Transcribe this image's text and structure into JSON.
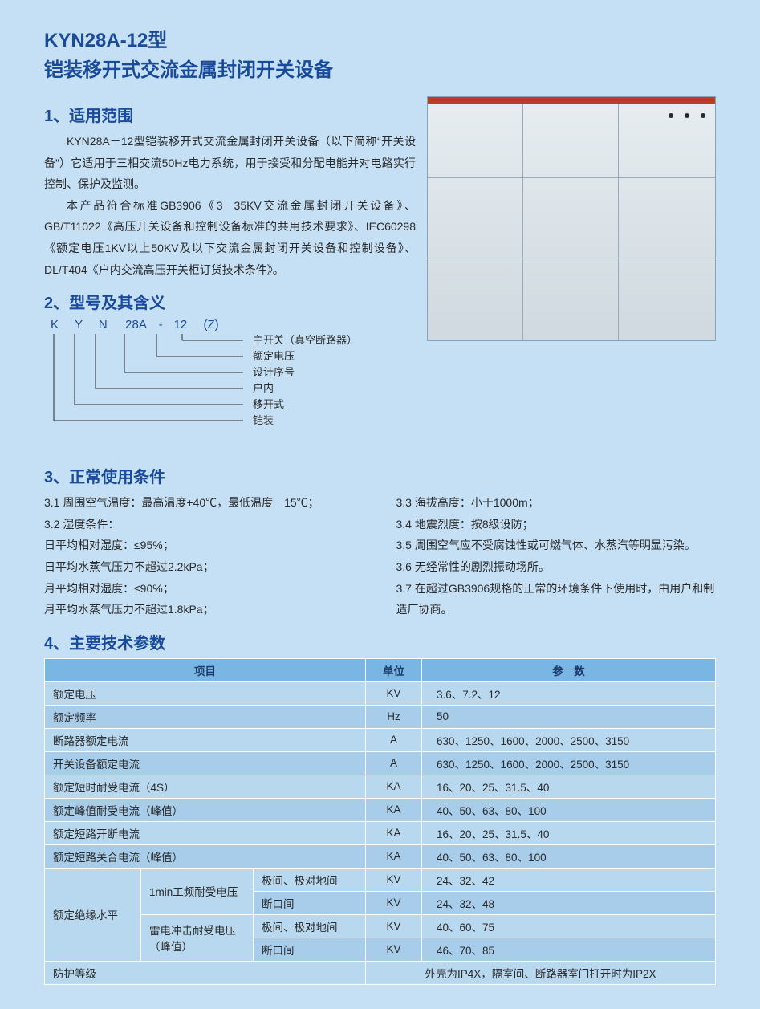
{
  "title": {
    "line1": "KYN28A-12型",
    "line2": "铠装移开式交流金属封闭开关设备"
  },
  "sections": {
    "s1": "1、适用范围",
    "s2": "2、型号及其含义",
    "s3": "3、正常使用条件",
    "s4": "4、主要技术参数"
  },
  "scope": {
    "p1": "KYN28A－12型铠装移开式交流金属封闭开关设备（以下简称“开关设备”）它适用于三相交流50Hz电力系统，用于接受和分配电能并对电路实行控制、保护及监测。",
    "p2": "本产品符合标准GB3906《3－35KV交流金属封闭开关设备》、GB/T11022《高压开关设备和控制设备标准的共用技术要求》、IEC60298《额定电压1KV以上50KV及以下交流金属封闭开关设备和控制设备》、DL/T404《户内交流高压开关柜订货技术条件》。"
  },
  "model": {
    "letters": {
      "k": "K",
      "y": "Y",
      "n": "N",
      "a": "28A",
      "dash": "-",
      "v12": "12",
      "z": "(Z)"
    },
    "labels": [
      "主开关（真空断路器）",
      "额定电压",
      "设计序号",
      "户内",
      "移开式",
      "铠装"
    ],
    "bracket": {
      "stroke": "#2a2a2a",
      "stroke_width": 1,
      "x_stubs": [
        12,
        38,
        64,
        100,
        140,
        172
      ],
      "y_top": 0,
      "y_ends": [
        108,
        88,
        68,
        48,
        28,
        8
      ],
      "x_label": 248
    }
  },
  "conditions": {
    "left": [
      "3.1 周围空气温度：最高温度+40℃，最低温度－15℃；",
      "3.2 湿度条件：",
      "日平均相对湿度：≤95%；",
      "日平均水蒸气压力不超过2.2kPa；",
      "月平均相对湿度：≤90%；",
      "月平均水蒸气压力不超过1.8kPa；"
    ],
    "right": [
      "3.3 海拔高度：小于1000m；",
      "3.4 地震烈度：按8级设防；",
      "3.5 周围空气应不受腐蚀性或可燃气体、水蒸汽等明显污染。",
      "3.6 无经常性的剧烈振动场所。",
      "3.7 在超过GB3906规格的正常的环境条件下使用时，由用户和制造厂协商。"
    ]
  },
  "spec_table": {
    "header": {
      "item": "项目",
      "unit": "单位",
      "param": "参　数"
    },
    "rows": [
      {
        "item": "额定电压",
        "unit": "KV",
        "val": "3.6、7.2、12"
      },
      {
        "item": "额定频率",
        "unit": "Hz",
        "val": "50"
      },
      {
        "item": "断路器额定电流",
        "unit": "A",
        "val": "630、1250、1600、2000、2500、3150"
      },
      {
        "item": "开关设备额定电流",
        "unit": "A",
        "val": "630、1250、1600、2000、2500、3150"
      },
      {
        "item": "额定短时耐受电流（4S）",
        "unit": "KA",
        "val": "16、20、25、31.5、40"
      },
      {
        "item": "额定峰值耐受电流（峰值）",
        "unit": "KA",
        "val": "40、50、63、80、100"
      },
      {
        "item": "额定短路开断电流",
        "unit": "KA",
        "val": "16、20、25、31.5、40"
      },
      {
        "item": "额定短路关合电流（峰值）",
        "unit": "KA",
        "val": "40、50、63、80、100"
      }
    ],
    "insulation": {
      "group": "额定绝缘水平",
      "sub1": "1min工频耐受电压",
      "sub2": "雷电冲击耐受电压（峰值）",
      "rows": [
        {
          "cond": "极间、极对地间",
          "unit": "KV",
          "val": "24、32、42"
        },
        {
          "cond": "断口间",
          "unit": "KV",
          "val": "24、32、48"
        },
        {
          "cond": "极间、极对地间",
          "unit": "KV",
          "val": "40、60、75"
        },
        {
          "cond": "断口间",
          "unit": "KV",
          "val": "46、70、85"
        }
      ]
    },
    "protection": {
      "item": "防护等级",
      "val": "外壳为IP4X，隔室间、断路器室门打开时为IP2X"
    }
  },
  "colors": {
    "page_bg": "#c5e0f5",
    "heading": "#1a4a9a",
    "text": "#2a2a2a",
    "th_bg": "#7ab6e3",
    "row_odd": "#b8d8f0",
    "row_even": "#a7cdea",
    "cell_border": "#ffffff"
  }
}
